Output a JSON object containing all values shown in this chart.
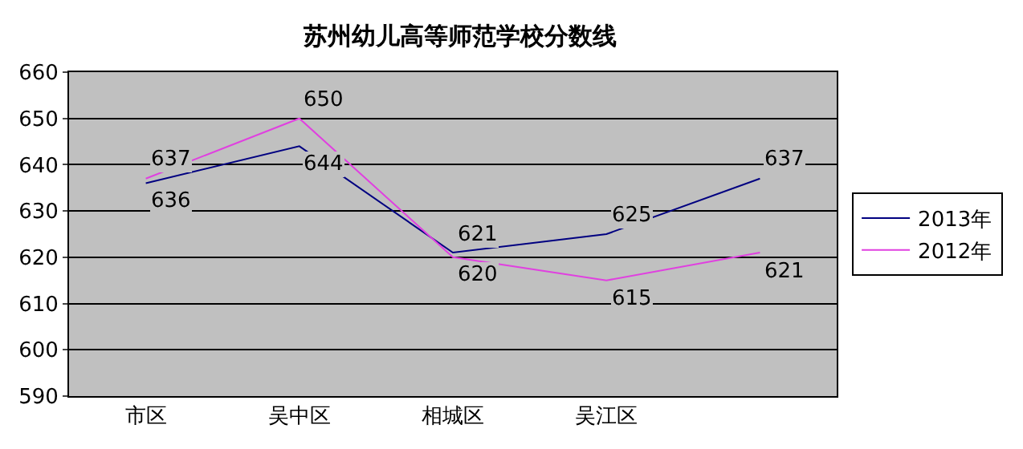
{
  "chart_data": {
    "type": "line",
    "title": "苏州幼儿高等师范学校分数线",
    "categories": [
      "市区",
      "吴中区",
      "相城区",
      "吴江区",
      null
    ],
    "series": [
      {
        "name": "2013年",
        "color": "#000080",
        "values": [
          636,
          644,
          621,
          625,
          637
        ]
      },
      {
        "name": "2012年",
        "color": "#e040e0",
        "values": [
          637,
          650,
          620,
          615,
          621
        ]
      }
    ],
    "ylim": [
      590,
      660
    ],
    "yticks": [
      590,
      600,
      610,
      620,
      630,
      640,
      650,
      660
    ],
    "grid": "y",
    "legend": "right",
    "data_labels": true,
    "marker": "none",
    "line_style": "solid"
  }
}
